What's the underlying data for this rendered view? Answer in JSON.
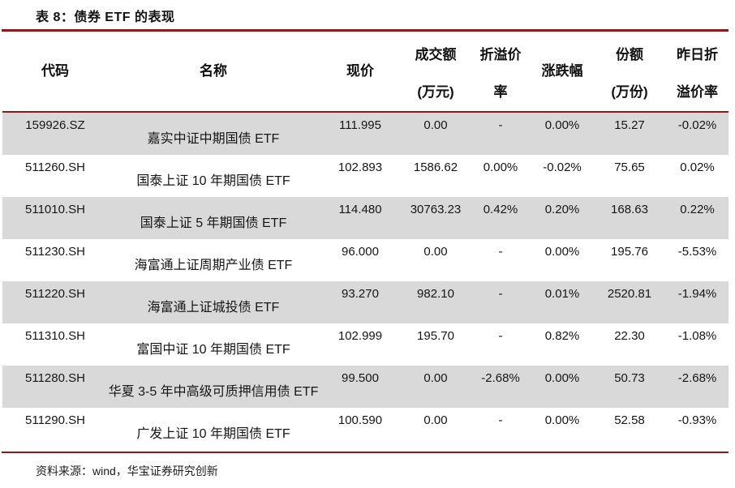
{
  "page": {
    "title": "表 8：债券 ETF 的表现",
    "source_note": "资料来源：wind，华宝证券研究创新",
    "accent_color": "#8C1A1C",
    "row_shade_color": "#D9D9D9"
  },
  "table": {
    "headers": {
      "code": "代码",
      "name": "名称",
      "price": "现价",
      "turnover_line1": "成交额",
      "turnover_line2": "(万元)",
      "premium_line1": "折溢价",
      "premium_line2": "率",
      "change": "涨跌幅",
      "shares_line1": "份额",
      "shares_line2": "(万份)",
      "prev_premium_line1": "昨日折",
      "prev_premium_line2": "溢价率"
    },
    "rows": [
      {
        "code": "159926.SZ",
        "name": "嘉实中证中期国债 ETF",
        "price": "111.995",
        "turnover": "0.00",
        "premium_rate": "-",
        "change": "0.00%",
        "shares": "15.27",
        "prev_premium": "-0.02%"
      },
      {
        "code": "511260.SH",
        "name": "国泰上证 10 年期国债 ETF",
        "price": "102.893",
        "turnover": "1586.62",
        "premium_rate": "0.00%",
        "change": "-0.02%",
        "shares": "75.65",
        "prev_premium": "0.02%"
      },
      {
        "code": "511010.SH",
        "name": "国泰上证 5 年期国债 ETF",
        "price": "114.480",
        "turnover": "30763.23",
        "premium_rate": "0.42%",
        "change": "0.20%",
        "shares": "168.63",
        "prev_premium": "0.22%"
      },
      {
        "code": "511230.SH",
        "name": "海富通上证周期产业债 ETF",
        "price": "96.000",
        "turnover": "0.00",
        "premium_rate": "-",
        "change": "0.00%",
        "shares": "195.76",
        "prev_premium": "-5.53%"
      },
      {
        "code": "511220.SH",
        "name": "海富通上证城投债 ETF",
        "price": "93.270",
        "turnover": "982.10",
        "premium_rate": "-",
        "change": "0.01%",
        "shares": "2520.81",
        "prev_premium": "-1.94%"
      },
      {
        "code": "511310.SH",
        "name": "富国中证 10 年期国债 ETF",
        "price": "102.999",
        "turnover": "195.70",
        "premium_rate": "-",
        "change": "0.82%",
        "shares": "22.30",
        "prev_premium": "-1.08%"
      },
      {
        "code": "511280.SH",
        "name": "华夏 3-5 年中高级可质押信用债 ETF",
        "price": "99.500",
        "turnover": "0.00",
        "premium_rate": "-2.68%",
        "change": "0.00%",
        "shares": "50.73",
        "prev_premium": "-2.68%"
      },
      {
        "code": "511290.SH",
        "name": "广发上证 10 年期国债 ETF",
        "price": "100.590",
        "turnover": "0.00",
        "premium_rate": "-",
        "change": "0.00%",
        "shares": "52.58",
        "prev_premium": "-0.93%"
      }
    ]
  }
}
